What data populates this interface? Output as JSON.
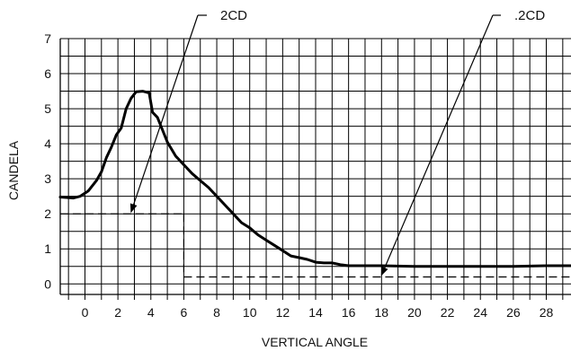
{
  "chart_data": {
    "type": "line",
    "title": "",
    "xlabel": "VERTICAL ANGLE",
    "ylabel": "CANDELA",
    "xlim": [
      -1.5,
      29.5
    ],
    "ylim": [
      -0.3,
      7
    ],
    "grid": true,
    "xticks": [
      0,
      2,
      4,
      6,
      8,
      10,
      12,
      14,
      16,
      18,
      20,
      22,
      24,
      26,
      28
    ],
    "xtick_labels": [
      "0",
      "2",
      "4",
      "6",
      "8",
      "10",
      "12",
      "14",
      "16",
      "18",
      "20",
      "22",
      "24",
      "26",
      "28"
    ],
    "yticks": [
      0,
      1,
      2,
      3,
      4,
      5,
      6,
      7
    ],
    "ytick_labels": [
      "0",
      "1",
      "2",
      "3",
      "4",
      "5",
      "6",
      "7"
    ],
    "series": [
      {
        "x": [
          -1.5,
          -0.7,
          -0.3,
          0.2,
          0.7,
          1.0,
          1.3,
          1.6,
          1.9,
          2.2,
          2.5,
          2.8,
          3.1,
          3.5,
          3.9,
          4.1,
          4.4,
          4.7,
          5.0,
          5.5,
          6.0,
          6.5,
          7.0,
          7.5,
          8.0,
          8.5,
          9.0,
          9.5,
          10.0,
          10.5,
          11.0,
          11.5,
          12.0,
          12.5,
          13.0,
          13.5,
          14.0,
          14.5,
          15.0,
          15.5,
          16.0,
          17.0,
          18.0,
          20.0,
          22.0,
          24.0,
          26.0,
          28.0,
          29.5
        ],
        "y": [
          2.48,
          2.45,
          2.5,
          2.65,
          2.95,
          3.2,
          3.6,
          3.9,
          4.25,
          4.45,
          5.0,
          5.3,
          5.48,
          5.5,
          5.45,
          4.9,
          4.75,
          4.4,
          4.05,
          3.65,
          3.4,
          3.15,
          2.95,
          2.75,
          2.5,
          2.25,
          2.0,
          1.75,
          1.6,
          1.4,
          1.25,
          1.1,
          0.95,
          0.8,
          0.75,
          0.7,
          0.62,
          0.6,
          0.6,
          0.55,
          0.52,
          0.52,
          0.52,
          0.5,
          0.5,
          0.5,
          0.5,
          0.52,
          0.52
        ]
      }
    ],
    "reference_lines": [
      {
        "label": "2CD",
        "level": 2,
        "from_x": -1.5,
        "to_x": 6
      },
      {
        "label": ".2CD",
        "level": 0.2,
        "from_x": 6,
        "to_x": 29.5
      }
    ],
    "annotations": [
      {
        "text": "2CD",
        "points_to": [
          2.8,
          2
        ]
      },
      {
        "text": ".2CD",
        "points_to": [
          18,
          0.2
        ]
      }
    ]
  }
}
